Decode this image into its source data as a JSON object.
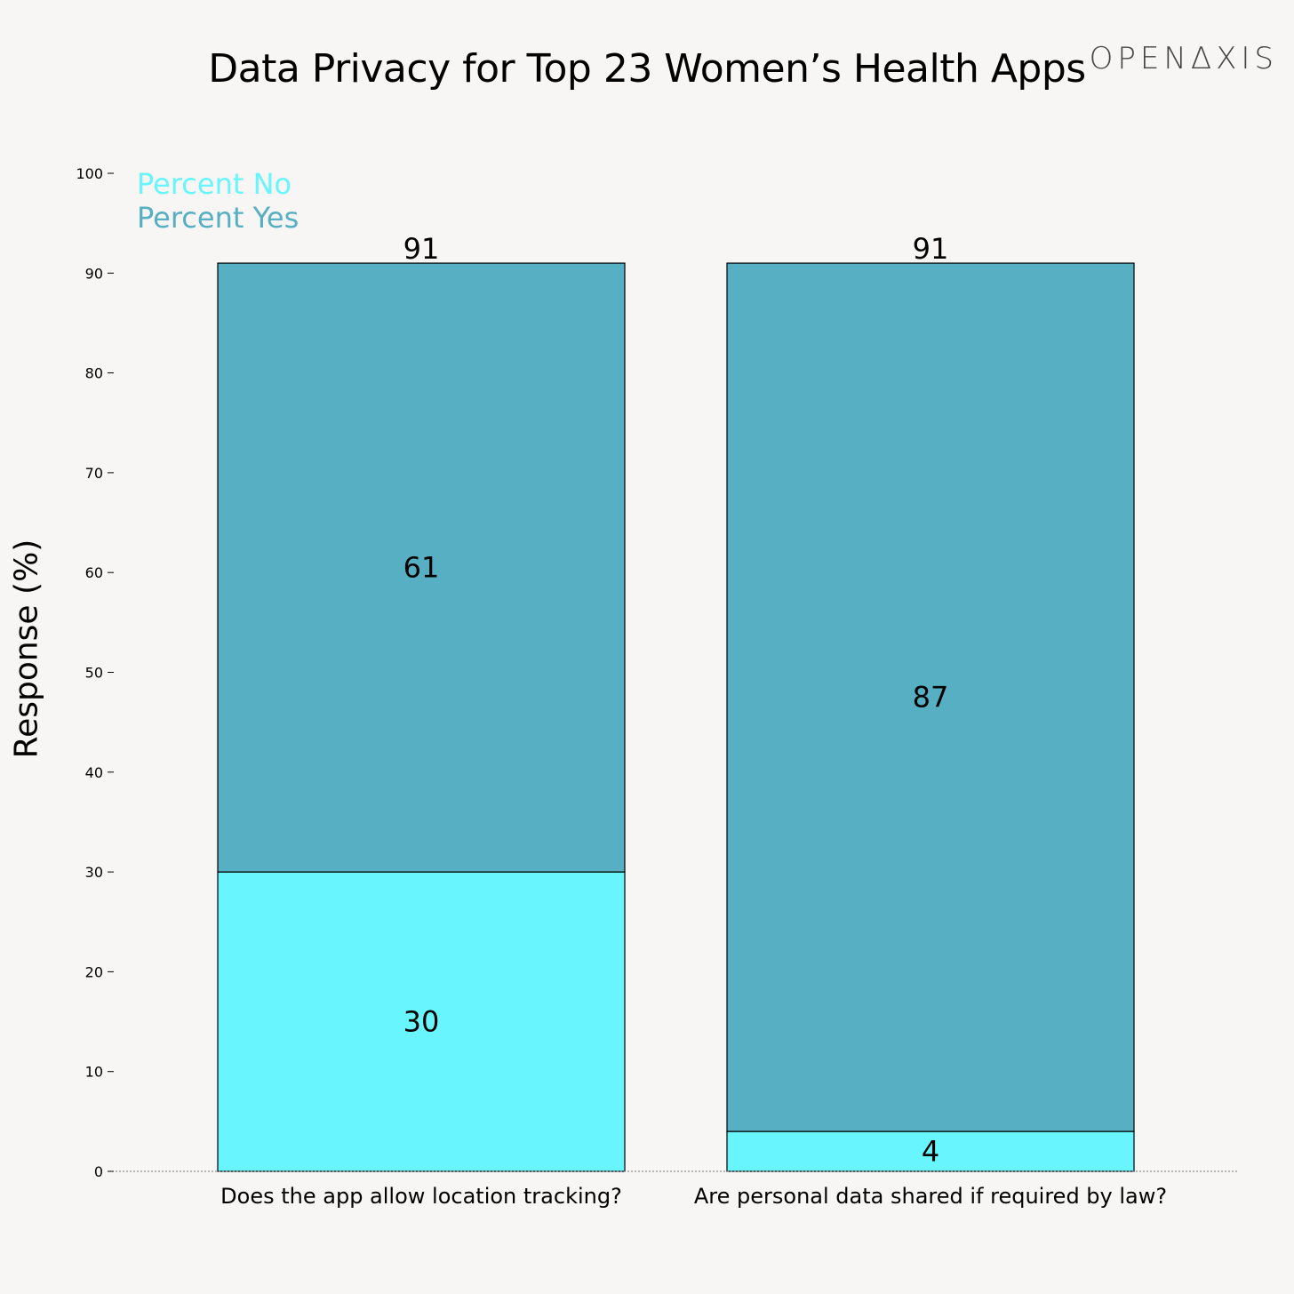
{
  "header": {
    "title": "Data Privacy for Top 23 Women’s Health Apps",
    "brand": "OPENΔXIS"
  },
  "colors": {
    "percent_no": "#69f5fd",
    "percent_yes": "#57afc4",
    "background": "#f7f6f4"
  },
  "chart_data": {
    "type": "bar",
    "stacked": true,
    "categories": [
      "Does the app allow location tracking?",
      "Are personal data shared if required by law?"
    ],
    "series": [
      {
        "name": "Percent No",
        "values": [
          30,
          4
        ]
      },
      {
        "name": "Percent Yes",
        "values": [
          61,
          87
        ]
      }
    ],
    "totals": [
      91,
      91
    ],
    "title": "Data Privacy for Top 23 Women’s Health Apps",
    "xlabel": "",
    "ylabel": "Response (%)",
    "ylim": [
      0,
      100
    ],
    "yticks": [
      0,
      10,
      20,
      30,
      40,
      50,
      60,
      70,
      80,
      90,
      100
    ],
    "legend": "top-left",
    "grid": false
  }
}
